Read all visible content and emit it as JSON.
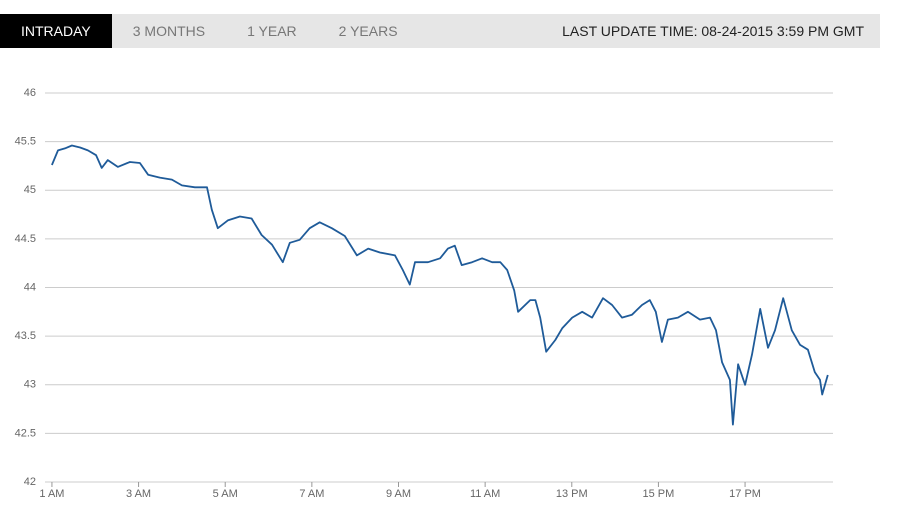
{
  "tabs": [
    "INTRADAY",
    "3 MONTHS",
    "1 YEAR",
    "2 YEARS"
  ],
  "last_update": "LAST UPDATE TIME: 08-24-2015 3:59 PM GMT",
  "chart_data": {
    "type": "line",
    "color": "#1f5b99",
    "grid": true,
    "ylim": [
      42,
      46
    ],
    "yticks": [
      42,
      42.5,
      43,
      43.5,
      44,
      44.5,
      45,
      45.5,
      46
    ],
    "xlim": [
      0.84,
      19.03
    ],
    "xticks": [
      {
        "value": 1,
        "label": "1 AM"
      },
      {
        "value": 3,
        "label": "3 AM"
      },
      {
        "value": 5,
        "label": "5 AM"
      },
      {
        "value": 7,
        "label": "7 AM"
      },
      {
        "value": 9,
        "label": "9 AM"
      },
      {
        "value": 11,
        "label": "11 AM"
      },
      {
        "value": 13,
        "label": "13 PM"
      },
      {
        "value": 15,
        "label": "15 PM"
      },
      {
        "value": 17,
        "label": "17 PM"
      }
    ],
    "x": [
      1.0,
      1.14,
      1.3,
      1.46,
      1.65,
      1.83,
      2.02,
      2.15,
      2.29,
      2.52,
      2.8,
      3.03,
      3.22,
      3.49,
      3.77,
      4.0,
      4.3,
      4.58,
      4.69,
      4.83,
      5.06,
      5.34,
      5.61,
      5.84,
      6.08,
      6.33,
      6.49,
      6.72,
      6.95,
      7.18,
      7.46,
      7.76,
      8.04,
      8.3,
      8.57,
      8.92,
      9.1,
      9.26,
      9.38,
      9.68,
      9.96,
      10.14,
      10.3,
      10.46,
      10.7,
      10.93,
      11.16,
      11.35,
      11.51,
      11.67,
      11.76,
      12.04,
      12.16,
      12.27,
      12.41,
      12.62,
      12.78,
      13.01,
      13.24,
      13.47,
      13.72,
      13.93,
      14.16,
      14.39,
      14.62,
      14.8,
      14.94,
      15.08,
      15.22,
      15.45,
      15.68,
      15.96,
      16.19,
      16.33,
      16.47,
      16.65,
      16.72,
      16.84,
      17.0,
      17.16,
      17.35,
      17.53,
      17.69,
      17.88,
      18.08,
      18.27,
      18.45,
      18.61,
      18.73,
      18.78,
      18.91
    ],
    "values": [
      45.26,
      45.41,
      45.43,
      45.46,
      45.44,
      45.41,
      45.36,
      45.23,
      45.31,
      45.24,
      45.29,
      45.28,
      45.16,
      45.13,
      45.11,
      45.05,
      45.03,
      45.03,
      44.8,
      44.61,
      44.69,
      44.73,
      44.71,
      44.54,
      44.44,
      44.26,
      44.46,
      44.49,
      44.61,
      44.67,
      44.61,
      44.53,
      44.33,
      44.4,
      44.36,
      44.33,
      44.18,
      44.03,
      44.26,
      44.26,
      44.3,
      44.4,
      44.43,
      44.23,
      44.26,
      44.3,
      44.26,
      44.26,
      44.18,
      43.97,
      43.75,
      43.87,
      43.87,
      43.69,
      43.34,
      43.46,
      43.58,
      43.69,
      43.75,
      43.69,
      43.89,
      43.82,
      43.69,
      43.72,
      43.82,
      43.87,
      43.75,
      43.44,
      43.67,
      43.69,
      43.75,
      43.67,
      43.69,
      43.56,
      43.23,
      43.05,
      42.59,
      43.21,
      43.0,
      43.31,
      43.78,
      43.38,
      43.56,
      43.89,
      43.56,
      43.41,
      43.36,
      43.13,
      43.05,
      42.9,
      43.1
    ]
  }
}
